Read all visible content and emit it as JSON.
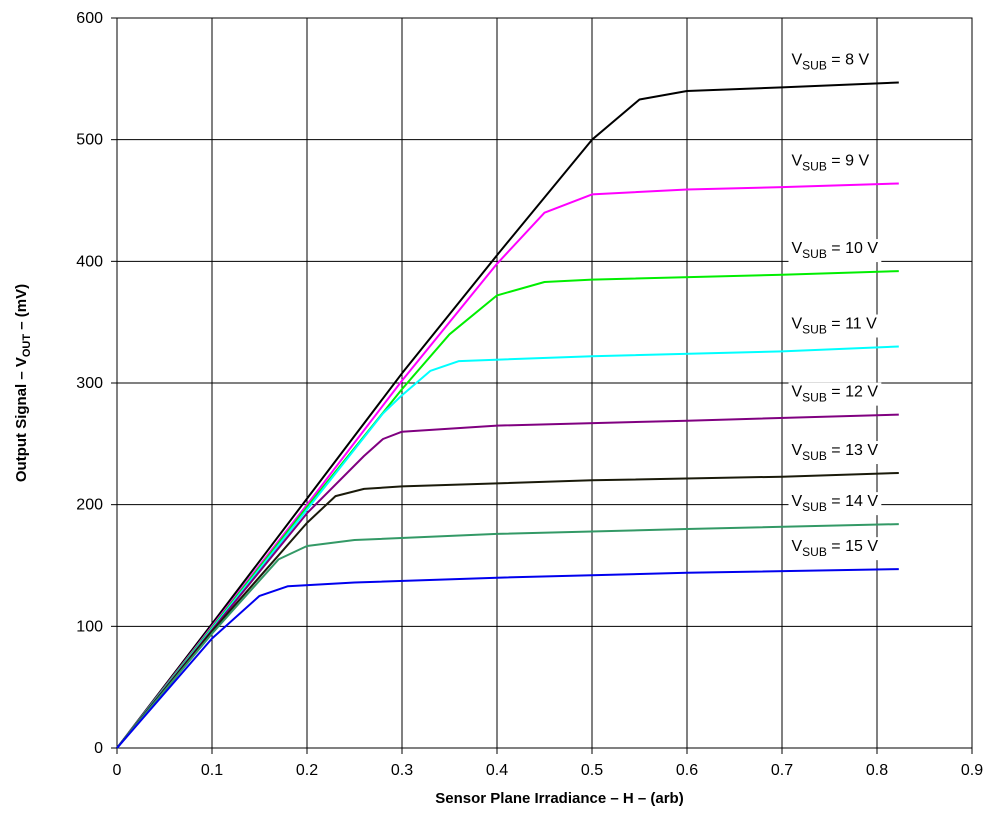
{
  "chart_data": {
    "type": "line",
    "xlabel": "Sensor Plane Irradiance – H – (arb)",
    "ylabel": {
      "prefix": "Output Signal – V",
      "sub": "OUT",
      "suffix": " – (mV)"
    },
    "xlim": [
      0,
      0.9
    ],
    "ylim": [
      0,
      600
    ],
    "x_ticks": [
      0,
      0.1,
      0.2,
      0.3,
      0.4,
      0.5,
      0.6,
      0.7,
      0.8,
      0.9
    ],
    "x_tick_labels": [
      "0",
      "0.1",
      "0.2",
      "0.3",
      "0.4",
      "0.5",
      "0.6",
      "0.7",
      "0.8",
      "0.9"
    ],
    "y_ticks": [
      0,
      100,
      200,
      300,
      400,
      500,
      600
    ],
    "y_tick_labels": [
      "0",
      "100",
      "200",
      "300",
      "400",
      "500",
      "600"
    ],
    "grid": true,
    "series": [
      {
        "label": {
          "main": "V",
          "sub": "SUB",
          "rest": " = 8 V"
        },
        "color": "#000000",
        "points": [
          [
            0,
            0
          ],
          [
            0.1,
            102
          ],
          [
            0.2,
            205
          ],
          [
            0.3,
            308
          ],
          [
            0.4,
            405
          ],
          [
            0.5,
            500
          ],
          [
            0.55,
            533
          ],
          [
            0.6,
            540
          ],
          [
            0.7,
            543
          ],
          [
            0.823,
            547
          ]
        ]
      },
      {
        "label": {
          "main": "V",
          "sub": "SUB",
          "rest": " = 9 V"
        },
        "color": "#ff00ff",
        "points": [
          [
            0,
            0
          ],
          [
            0.1,
            100
          ],
          [
            0.2,
            200
          ],
          [
            0.3,
            302
          ],
          [
            0.4,
            398
          ],
          [
            0.45,
            440
          ],
          [
            0.5,
            455
          ],
          [
            0.6,
            459
          ],
          [
            0.7,
            461
          ],
          [
            0.823,
            464
          ]
        ]
      },
      {
        "label": {
          "main": "V",
          "sub": "SUB",
          "rest": " = 10 V"
        },
        "color": "#00ee00",
        "points": [
          [
            0,
            0
          ],
          [
            0.1,
            99
          ],
          [
            0.2,
            198
          ],
          [
            0.3,
            295
          ],
          [
            0.35,
            340
          ],
          [
            0.4,
            372
          ],
          [
            0.45,
            383
          ],
          [
            0.5,
            385
          ],
          [
            0.7,
            389
          ],
          [
            0.823,
            392
          ]
        ]
      },
      {
        "label": {
          "main": "V",
          "sub": "SUB",
          "rest": " = 11 V"
        },
        "color": "#00ffff",
        "points": [
          [
            0,
            0
          ],
          [
            0.1,
            98
          ],
          [
            0.2,
            196
          ],
          [
            0.28,
            275
          ],
          [
            0.3,
            290
          ],
          [
            0.33,
            310
          ],
          [
            0.36,
            318
          ],
          [
            0.5,
            322
          ],
          [
            0.7,
            326
          ],
          [
            0.823,
            330
          ]
        ]
      },
      {
        "label": {
          "main": "V",
          "sub": "SUB",
          "rest": " = 12 V"
        },
        "color": "#800080",
        "points": [
          [
            0,
            0
          ],
          [
            0.1,
            97
          ],
          [
            0.2,
            193
          ],
          [
            0.26,
            240
          ],
          [
            0.28,
            254
          ],
          [
            0.3,
            260
          ],
          [
            0.4,
            265
          ],
          [
            0.6,
            269
          ],
          [
            0.823,
            274
          ]
        ]
      },
      {
        "label": {
          "main": "V",
          "sub": "SUB",
          "rest": " = 13 V"
        },
        "color": "#1a1a0a",
        "points": [
          [
            0,
            0
          ],
          [
            0.1,
            96
          ],
          [
            0.2,
            185
          ],
          [
            0.23,
            207
          ],
          [
            0.26,
            213
          ],
          [
            0.3,
            215
          ],
          [
            0.5,
            220
          ],
          [
            0.7,
            223
          ],
          [
            0.823,
            226
          ]
        ]
      },
      {
        "label": {
          "main": "V",
          "sub": "SUB",
          "rest": " = 14 V"
        },
        "color": "#339966",
        "points": [
          [
            0,
            0
          ],
          [
            0.1,
            94
          ],
          [
            0.17,
            155
          ],
          [
            0.2,
            166
          ],
          [
            0.25,
            171
          ],
          [
            0.4,
            176
          ],
          [
            0.6,
            180
          ],
          [
            0.823,
            184
          ]
        ]
      },
      {
        "label": {
          "main": "V",
          "sub": "SUB",
          "rest": " = 15 V"
        },
        "color": "#0000ee",
        "points": [
          [
            0,
            0
          ],
          [
            0.1,
            90
          ],
          [
            0.15,
            125
          ],
          [
            0.18,
            133
          ],
          [
            0.25,
            136
          ],
          [
            0.4,
            140
          ],
          [
            0.6,
            144
          ],
          [
            0.823,
            147
          ]
        ]
      }
    ]
  }
}
